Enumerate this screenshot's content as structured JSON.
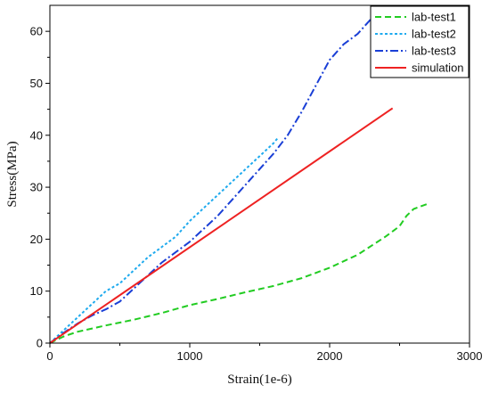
{
  "chart_data": {
    "type": "line",
    "title": "",
    "xlabel": "Strain(1e-6)",
    "ylabel": "Stress(MPa)",
    "xlim": [
      0,
      3000
    ],
    "ylim": [
      0,
      65
    ],
    "xticks": [
      0,
      1000,
      2000,
      3000
    ],
    "yticks": [
      0,
      10,
      20,
      30,
      40,
      50,
      60
    ],
    "grid": false,
    "legend_position": "top-right",
    "series": [
      {
        "name": "lab-test1",
        "color": "#22cc22",
        "dash": "dashed",
        "x": [
          0,
          100,
          200,
          400,
          600,
          800,
          1000,
          1200,
          1400,
          1600,
          1800,
          2000,
          2200,
          2400,
          2500,
          2550,
          2600,
          2650,
          2700
        ],
        "y": [
          0,
          1.3,
          2.2,
          3.4,
          4.5,
          5.8,
          7.3,
          8.5,
          9.8,
          11.0,
          12.5,
          14.5,
          17.0,
          20.5,
          22.5,
          24.5,
          25.8,
          26.3,
          26.8
        ]
      },
      {
        "name": "lab-test2",
        "color": "#1eaaee",
        "dash": "dotted",
        "x": [
          0,
          100,
          200,
          300,
          400,
          500,
          600,
          700,
          800,
          900,
          1000,
          1100,
          1200,
          1300,
          1400,
          1500,
          1600,
          1630
        ],
        "y": [
          0,
          2.5,
          5.0,
          7.5,
          10.0,
          11.5,
          14.0,
          16.5,
          18.5,
          20.5,
          23.5,
          26.0,
          28.5,
          31.0,
          33.5,
          36.0,
          38.5,
          39.5
        ]
      },
      {
        "name": "lab-test3",
        "color": "#1a3fd6",
        "dash": "dashdot",
        "x": [
          0,
          100,
          200,
          300,
          400,
          500,
          600,
          700,
          800,
          900,
          1000,
          1100,
          1200,
          1300,
          1400,
          1500,
          1600,
          1700,
          1800,
          1900,
          2000,
          2100,
          2200,
          2250,
          2300
        ],
        "y": [
          0,
          2.0,
          3.8,
          5.3,
          6.5,
          8.0,
          10.5,
          13.0,
          15.5,
          17.5,
          19.5,
          22.0,
          24.5,
          27.5,
          30.5,
          33.5,
          36.5,
          40.0,
          44.5,
          49.5,
          54.5,
          57.5,
          59.5,
          61.0,
          62.5
        ]
      },
      {
        "name": "simulation",
        "color": "#ee2222",
        "dash": "solid",
        "x": [
          0,
          2450
        ],
        "y": [
          0,
          45.2
        ]
      }
    ]
  }
}
